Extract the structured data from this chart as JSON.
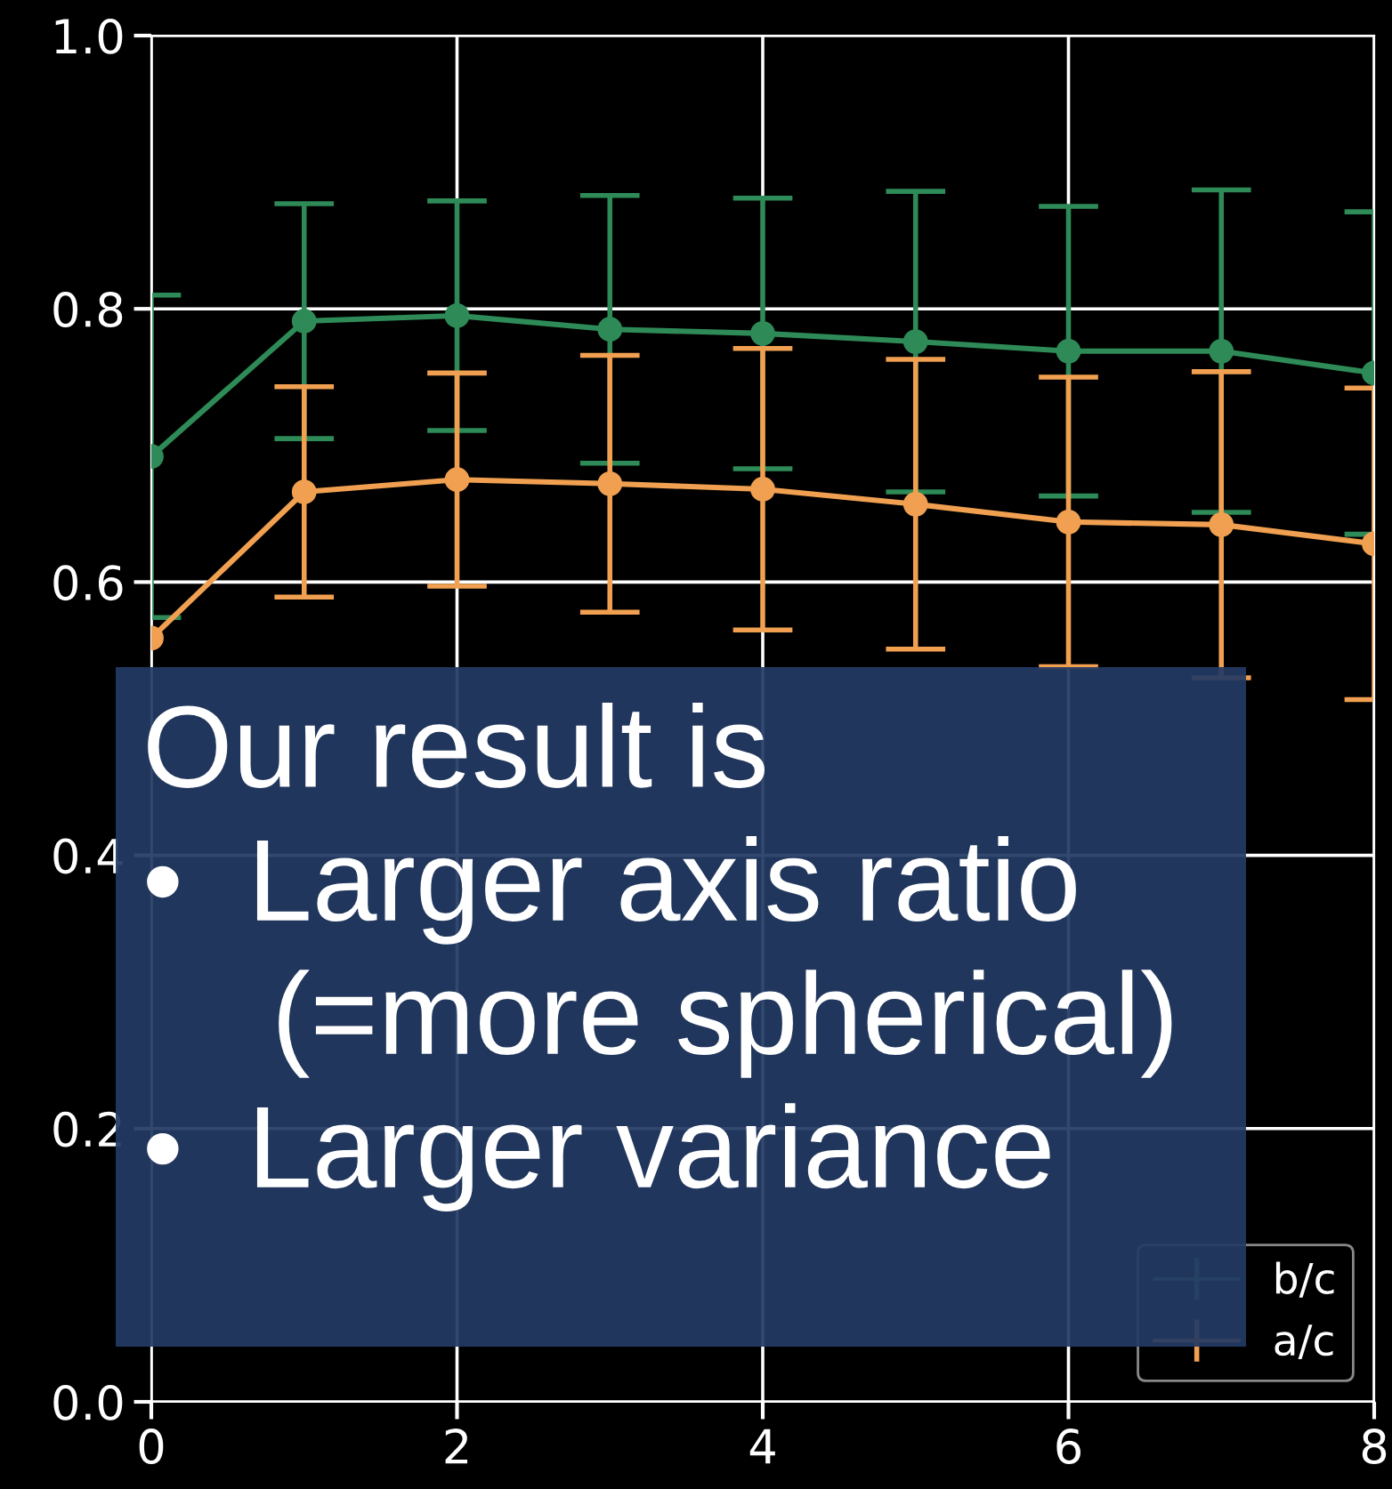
{
  "chart_data": {
    "type": "line",
    "x": [
      0,
      1,
      2,
      3,
      4,
      5,
      6,
      7,
      8
    ],
    "series": [
      {
        "name": "b/c",
        "color": "#2e8b57",
        "values": [
          0.692,
          0.791,
          0.795,
          0.785,
          0.782,
          0.776,
          0.769,
          0.769,
          0.753
        ],
        "errors": [
          0.118,
          0.086,
          0.084,
          0.098,
          0.099,
          0.11,
          0.106,
          0.118,
          0.118
        ]
      },
      {
        "name": "a/c",
        "color": "#f0a050",
        "values": [
          0.559,
          0.666,
          0.675,
          0.672,
          0.668,
          0.657,
          0.644,
          0.642,
          0.628
        ],
        "errors": [
          null,
          0.077,
          0.078,
          0.094,
          0.103,
          0.106,
          0.106,
          0.112,
          0.114
        ]
      }
    ],
    "xlim": [
      0,
      8
    ],
    "xticks": [
      0,
      2,
      4,
      6,
      8
    ],
    "ylim": [
      0,
      1.0
    ],
    "yticks": [
      {
        "value": 0.0,
        "label": "0.0"
      },
      0.2,
      0.4,
      0.6,
      0.8,
      {
        "value": 1.0,
        "label": "1.0"
      }
    ],
    "grid": true,
    "legend": "bottom right",
    "marker": "circle",
    "line_style": "solid",
    "annotations": [
      "Our result is\n•  Larger axis ratio\n    (=more spherical)\n•  Larger variance"
    ]
  }
}
